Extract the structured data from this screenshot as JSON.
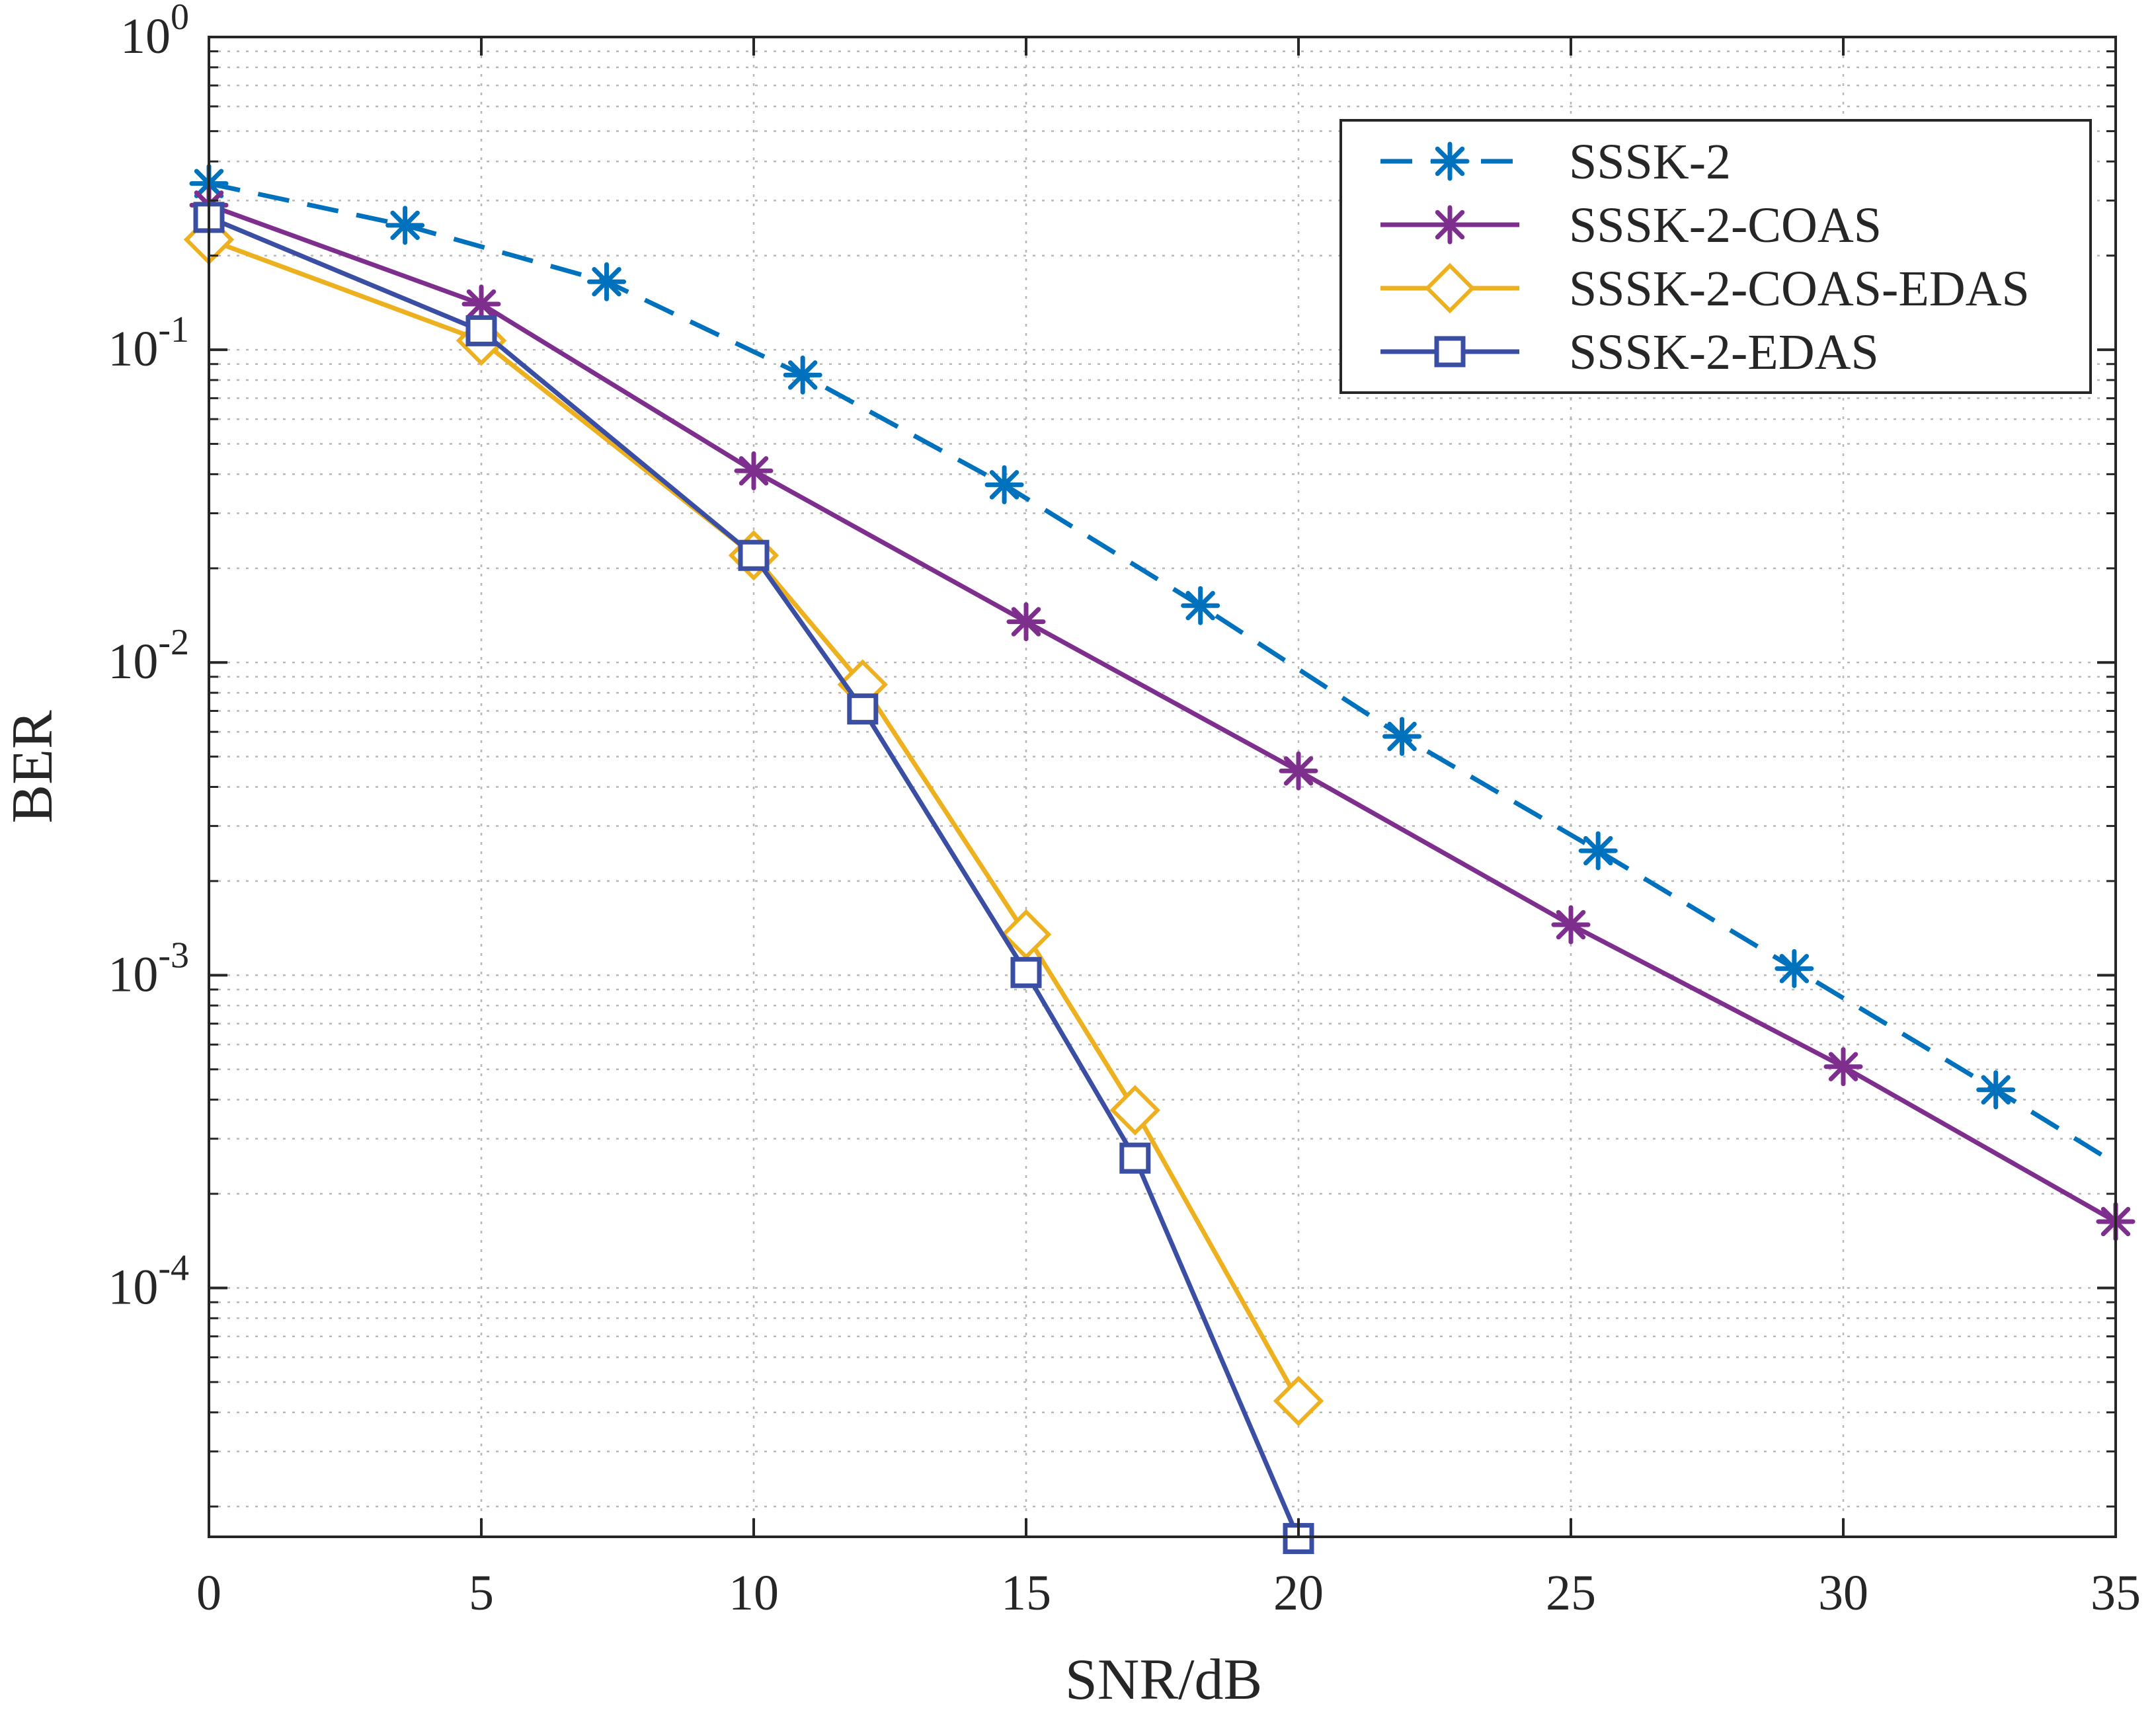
{
  "chart_data": {
    "type": "line",
    "title": "",
    "xlabel": "SNR/dB",
    "ylabel": "BER",
    "xlim": [
      0,
      35
    ],
    "ylim": [
      1.6e-05,
      1
    ],
    "y_scale": "log",
    "grid": true,
    "legend_position": "top-right",
    "x_ticks": [
      0,
      5,
      10,
      15,
      20,
      25,
      30,
      35
    ],
    "x_tick_labels": [
      "0",
      "5",
      "10",
      "15",
      "20",
      "25",
      "30",
      "35"
    ],
    "y_ticks": [
      1,
      0.1,
      0.01,
      0.001,
      0.0001
    ],
    "y_tick_labels": [
      {
        "base": "10",
        "exp": "0"
      },
      {
        "base": "10",
        "exp": "-1"
      },
      {
        "base": "10",
        "exp": "-2"
      },
      {
        "base": "10",
        "exp": "-3"
      },
      {
        "base": "10",
        "exp": "-4"
      }
    ],
    "series": [
      {
        "name": "SSSK-2",
        "color": "#0072bd",
        "line_style": "dashed",
        "marker": "asterisk",
        "x": [
          0,
          3.6,
          7.3,
          10.9,
          14.6,
          18.2,
          21.9,
          25.5,
          29.1,
          32.8,
          35
        ],
        "y": [
          0.34,
          0.25,
          0.165,
          0.083,
          0.037,
          0.0152,
          0.0058,
          0.0025,
          0.00105,
          0.00043,
          0.00025
        ],
        "marker_x": [
          0,
          3.6,
          7.3,
          10.9,
          14.6,
          18.2,
          21.9,
          25.5,
          29.1,
          32.8
        ],
        "marker_y": [
          0.34,
          0.25,
          0.165,
          0.083,
          0.037,
          0.0152,
          0.0058,
          0.0025,
          0.00105,
          0.00043
        ]
      },
      {
        "name": "SSSK-2-COAS",
        "color": "#7e2f8e",
        "line_style": "solid",
        "marker": "asterisk",
        "x": [
          0,
          5,
          10,
          15,
          20,
          25,
          30,
          35
        ],
        "y": [
          0.29,
          0.14,
          0.041,
          0.0135,
          0.0045,
          0.00145,
          0.00051,
          0.000163
        ],
        "marker_x": [
          0,
          5,
          10,
          15,
          20,
          25,
          30,
          35
        ],
        "marker_y": [
          0.29,
          0.14,
          0.041,
          0.0135,
          0.0045,
          0.00145,
          0.00051,
          0.000163
        ]
      },
      {
        "name": "SSSK-2-COAS-EDAS",
        "color": "#edb120",
        "line_style": "solid",
        "marker": "diamond",
        "x": [
          0,
          5,
          10,
          12,
          15,
          17,
          20
        ],
        "y": [
          0.225,
          0.107,
          0.022,
          0.0085,
          0.00135,
          0.00037,
          4.35e-05
        ],
        "marker_x": [
          0,
          5,
          10,
          12,
          15,
          17,
          20
        ],
        "marker_y": [
          0.225,
          0.107,
          0.022,
          0.0085,
          0.00135,
          0.00037,
          4.35e-05
        ]
      },
      {
        "name": "SSSK-2-EDAS",
        "color": "#3a4ea3",
        "line_style": "solid",
        "marker": "square",
        "x": [
          0,
          5,
          10,
          12,
          15,
          17,
          20
        ],
        "y": [
          0.265,
          0.115,
          0.022,
          0.0071,
          0.00102,
          0.00026,
          1.58e-05
        ],
        "marker_x": [
          0,
          5,
          10,
          12,
          15,
          17,
          20
        ],
        "marker_y": [
          0.265,
          0.115,
          0.022,
          0.0071,
          0.00102,
          0.00026,
          1.58e-05
        ]
      }
    ]
  }
}
